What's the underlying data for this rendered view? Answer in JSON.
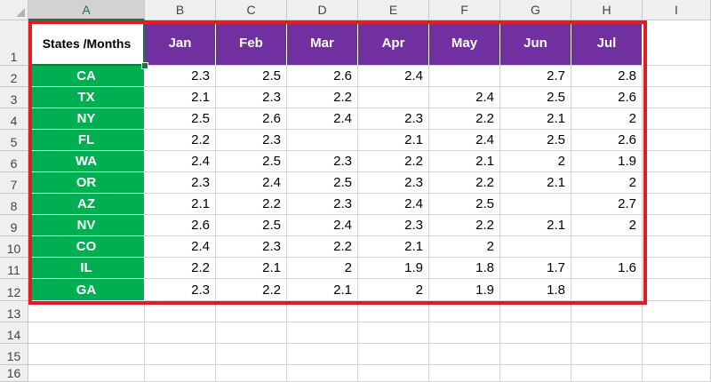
{
  "columns": [
    "A",
    "B",
    "C",
    "D",
    "E",
    "F",
    "G",
    "H",
    "I"
  ],
  "selected_column": "A",
  "row_numbers": [
    "1",
    "2",
    "3",
    "4",
    "5",
    "6",
    "7",
    "8",
    "9",
    "10",
    "11",
    "12",
    "13",
    "14",
    "15",
    "16"
  ],
  "header_label": "States /Months",
  "months": [
    "Jan",
    "Feb",
    "Mar",
    "Apr",
    "May",
    "Jun",
    "Jul"
  ],
  "rows": [
    {
      "state": "CA",
      "values": [
        "2.3",
        "2.5",
        "2.6",
        "2.4",
        "",
        "2.7",
        "2.8"
      ]
    },
    {
      "state": "TX",
      "values": [
        "2.1",
        "2.3",
        "2.2",
        "",
        "2.4",
        "2.5",
        "2.6"
      ]
    },
    {
      "state": "NY",
      "values": [
        "2.5",
        "2.6",
        "2.4",
        "2.3",
        "2.2",
        "2.1",
        "2"
      ]
    },
    {
      "state": "FL",
      "values": [
        "2.2",
        "2.3",
        "",
        "2.1",
        "2.4",
        "2.5",
        "2.6"
      ]
    },
    {
      "state": "WA",
      "values": [
        "2.4",
        "2.5",
        "2.3",
        "2.2",
        "2.1",
        "2",
        "1.9"
      ]
    },
    {
      "state": "OR",
      "values": [
        "2.3",
        "2.4",
        "2.5",
        "2.3",
        "2.2",
        "2.1",
        "2"
      ]
    },
    {
      "state": "AZ",
      "values": [
        "2.1",
        "2.2",
        "2.3",
        "2.4",
        "2.5",
        "",
        "2.7"
      ]
    },
    {
      "state": "NV",
      "values": [
        "2.6",
        "2.5",
        "2.4",
        "2.3",
        "2.2",
        "2.1",
        "2"
      ]
    },
    {
      "state": "CO",
      "values": [
        "2.4",
        "2.3",
        "2.2",
        "2.1",
        "2",
        "",
        ""
      ]
    },
    {
      "state": "IL",
      "values": [
        "2.2",
        "2.1",
        "2",
        "1.9",
        "1.8",
        "1.7",
        "1.6"
      ]
    },
    {
      "state": "GA",
      "values": [
        "2.3",
        "2.2",
        "2.1",
        "2",
        "1.9",
        "1.8",
        ""
      ]
    }
  ],
  "colors": {
    "state_fill": "#00b050",
    "month_fill": "#7030a0",
    "highlight_border": "#e31b23",
    "selection": "#217346"
  }
}
